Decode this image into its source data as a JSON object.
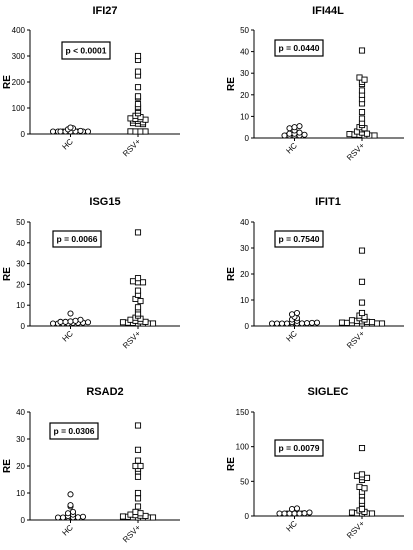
{
  "chart_data": [
    {
      "type": "scatter",
      "title": "IFI27",
      "ylabel": "RE",
      "ylim": [
        0,
        400
      ],
      "yticks": [
        "0",
        "100",
        "200",
        "300",
        "400"
      ],
      "categories": [
        "HC",
        "RSV+"
      ],
      "pvalue": "p < 0.0001",
      "series": [
        {
          "name": "HC",
          "marker": "circle",
          "values": [
            0,
            1,
            1,
            2,
            2,
            3,
            3,
            4,
            5,
            6,
            8,
            10,
            12,
            18,
            22,
            25
          ]
        },
        {
          "name": "RSV+",
          "marker": "square",
          "values": [
            300,
            285,
            240,
            225,
            180,
            145,
            140,
            115,
            105,
            100,
            90,
            80,
            70,
            65,
            60,
            58,
            57,
            55,
            52,
            50,
            45,
            42,
            40,
            38,
            10,
            8,
            6,
            5,
            4,
            3,
            2,
            1
          ]
        }
      ]
    },
    {
      "type": "scatter",
      "title": "IFI44L",
      "ylabel": "RE",
      "ylim": [
        0,
        50
      ],
      "yticks": [
        "0",
        "10",
        "20",
        "30",
        "40",
        "50"
      ],
      "categories": [
        "HC",
        "RSV+"
      ],
      "pvalue": "p = 0.0440",
      "series": [
        {
          "name": "HC",
          "marker": "circle",
          "values": [
            0.2,
            0.3,
            0.5,
            0.6,
            0.8,
            1,
            1,
            1.2,
            1.5,
            2,
            2,
            2.5,
            3.5,
            4.5,
            5,
            5.5
          ]
        },
        {
          "name": "RSV+",
          "marker": "square",
          "values": [
            40.5,
            28,
            27,
            26,
            25,
            22,
            20,
            18,
            16,
            12,
            9,
            7,
            6,
            5,
            4.5,
            4,
            3,
            2.5,
            2,
            1.8,
            1.6,
            1.5,
            1.2,
            1,
            0.8,
            0.6
          ]
        }
      ]
    },
    {
      "type": "scatter",
      "title": "ISG15",
      "ylabel": "RE",
      "ylim": [
        0,
        50
      ],
      "yticks": [
        "0",
        "10",
        "20",
        "30",
        "40",
        "50"
      ],
      "categories": [
        "HC",
        "RSV+"
      ],
      "pvalue": "p = 0.0066",
      "series": [
        {
          "name": "HC",
          "marker": "circle",
          "values": [
            1,
            1,
            1.2,
            1.3,
            1.5,
            1.5,
            1.6,
            1.8,
            2,
            2,
            2.2,
            2.5,
            3,
            6
          ]
        },
        {
          "name": "RSV+",
          "marker": "square",
          "values": [
            45,
            23,
            21.5,
            21,
            21,
            17,
            15,
            13,
            12,
            9,
            8,
            6,
            5,
            4,
            3.5,
            3,
            2.5,
            2.2,
            2,
            1.8,
            1.6,
            1.5,
            1.3,
            1.2,
            1,
            1
          ]
        }
      ]
    },
    {
      "type": "scatter",
      "title": "IFIT1",
      "ylabel": "RE",
      "ylim": [
        0,
        40
      ],
      "yticks": [
        "0",
        "10",
        "20",
        "30",
        "40"
      ],
      "categories": [
        "HC",
        "RSV+"
      ],
      "pvalue": "p = 0.7540",
      "series": [
        {
          "name": "HC",
          "marker": "circle",
          "values": [
            0.5,
            0.6,
            0.7,
            0.8,
            0.9,
            1,
            1,
            1.1,
            1.2,
            1.3,
            1.5,
            2,
            2.5,
            3,
            3.5,
            4.5,
            5
          ]
        },
        {
          "name": "RSV+",
          "marker": "square",
          "values": [
            29,
            17,
            9,
            5,
            4,
            3.5,
            3,
            2.5,
            2.2,
            2,
            1.8,
            1.6,
            1.5,
            1.3,
            1.2,
            1.1,
            1,
            0.9,
            0.8,
            0.7,
            0.6,
            0.5
          ]
        }
      ]
    },
    {
      "type": "scatter",
      "title": "RSAD2",
      "ylabel": "RE",
      "ylim": [
        0,
        40
      ],
      "yticks": [
        "0",
        "10",
        "20",
        "30",
        "40"
      ],
      "categories": [
        "HC",
        "RSV+"
      ],
      "pvalue": "p = 0.0306",
      "series": [
        {
          "name": "HC",
          "marker": "circle",
          "values": [
            0.3,
            0.4,
            0.5,
            0.6,
            0.8,
            1,
            1,
            1.2,
            1.5,
            2,
            2.5,
            3,
            5,
            5.5,
            9.5
          ]
        },
        {
          "name": "RSV+",
          "marker": "square",
          "values": [
            35,
            26,
            22,
            20,
            20,
            19,
            18,
            16,
            10,
            8,
            5,
            3,
            2.5,
            2,
            1.8,
            1.6,
            1.5,
            1.3,
            1.2,
            1,
            0.9,
            0.8,
            0.7,
            0.6
          ]
        }
      ]
    },
    {
      "type": "scatter",
      "title": "SIGLEC",
      "ylabel": "RE",
      "ylim": [
        0,
        150
      ],
      "yticks": [
        "0",
        "50",
        "100",
        "150"
      ],
      "categories": [
        "HC",
        "RSV+"
      ],
      "pvalue": "p = 0.0079",
      "series": [
        {
          "name": "HC",
          "marker": "circle",
          "values": [
            0.5,
            1,
            1,
            1.5,
            2,
            2,
            2.5,
            3,
            3,
            4,
            5,
            10,
            11
          ]
        },
        {
          "name": "RSV+",
          "marker": "square",
          "values": [
            98,
            60,
            58,
            56,
            55,
            52,
            42,
            40,
            35,
            30,
            22,
            18,
            10,
            8,
            6,
            5,
            4,
            3,
            2.5,
            2,
            1.5,
            1,
            0.5
          ]
        }
      ]
    }
  ]
}
